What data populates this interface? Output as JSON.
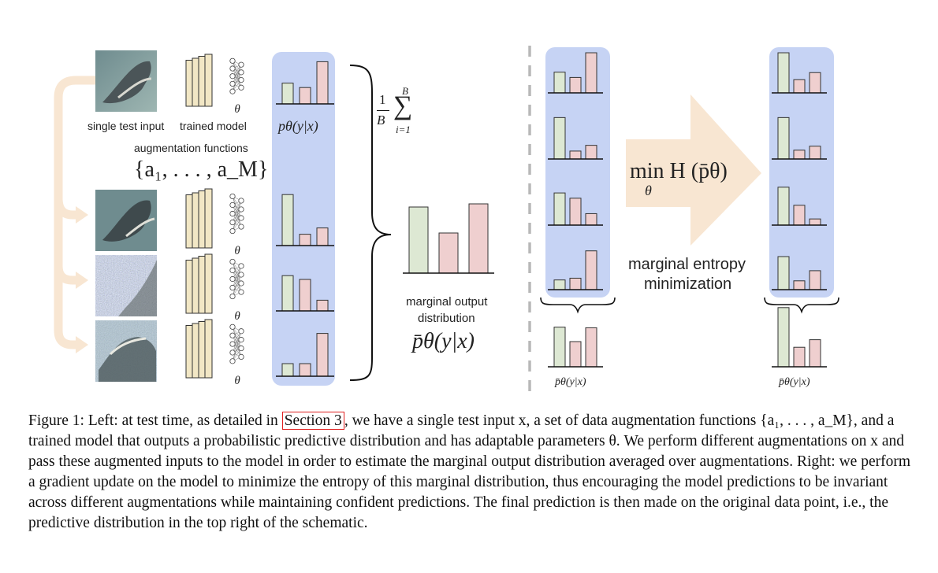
{
  "figure": {
    "labels": {
      "single_test_input": "single test input",
      "trained_model": "trained model",
      "augmentation_functions": "augmentation functions",
      "aug_set": "{a₁, . . . , a_M}",
      "p_theta": "pθ(y|x)",
      "avg_formula_num": "1",
      "avg_formula_den": "B",
      "sum_top": "B",
      "sum_bottom": "i=1",
      "marginal_output_line1": "marginal output",
      "marginal_output_line2": "distribution",
      "p_bar_theta": "p̄θ(y|x)",
      "min_formula": "min H (p̄θ)",
      "min_sub": "θ",
      "marginal_entropy_line1": "marginal entropy",
      "marginal_entropy_line2": "minimization",
      "p_bar_small_left": "p̄θ(y|x)",
      "p_bar_small_right": "p̄θ(y|x)",
      "theta": "θ"
    },
    "colors": {
      "panel": "#c6d3f4",
      "bar_green": "#dde8d3",
      "bar_pink": "#efcfcf",
      "bar_stroke": "#333333",
      "arrow_fill": "#f8e6d2",
      "model_fill": "#f2e7c5"
    },
    "histograms": {
      "left_original": [
        0.33,
        0.26,
        0.67
      ],
      "left_aug1": [
        0.81,
        0.18,
        0.28
      ],
      "left_aug2": [
        0.56,
        0.5,
        0.17
      ],
      "left_aug3": [
        0.2,
        0.2,
        0.68
      ],
      "marginal": [
        0.84,
        0.51,
        0.88
      ],
      "right_before": [
        [
          0.47,
          0.35,
          0.91
        ],
        [
          0.94,
          0.18,
          0.31
        ],
        [
          0.73,
          0.61,
          0.26
        ],
        [
          0.22,
          0.26,
          0.88
        ]
      ],
      "right_before_marginal": [
        0.63,
        0.4,
        0.62
      ],
      "right_after": [
        [
          0.91,
          0.3,
          0.46
        ],
        [
          0.94,
          0.2,
          0.29
        ],
        [
          0.86,
          0.45,
          0.14
        ],
        [
          0.75,
          0.2,
          0.43
        ]
      ],
      "right_after_marginal": [
        0.94,
        0.31,
        0.43
      ]
    }
  },
  "caption": {
    "figure_label": "Figure 1:",
    "text_before_ref": " Left: at test time, as detailed in ",
    "section_ref": "Section 3",
    "text_after_ref": ", we have a single test input x, a set of data augmentation functions {a₁, . . . , a_M}, and a trained model that outputs a probabilistic predictive distribution and has adaptable parameters θ. We perform different augmentations on x and pass these augmented inputs to the model in order to estimate the marginal output distribution averaged over augmentations. Right: we perform a gradient update on the model to minimize the entropy of this marginal distribution, thus encouraging the model predictions to be invariant across different augmentations while maintaining confident predictions. The final prediction is then made on the original data point, i.e., the predictive distribution in the top right of the schematic."
  }
}
